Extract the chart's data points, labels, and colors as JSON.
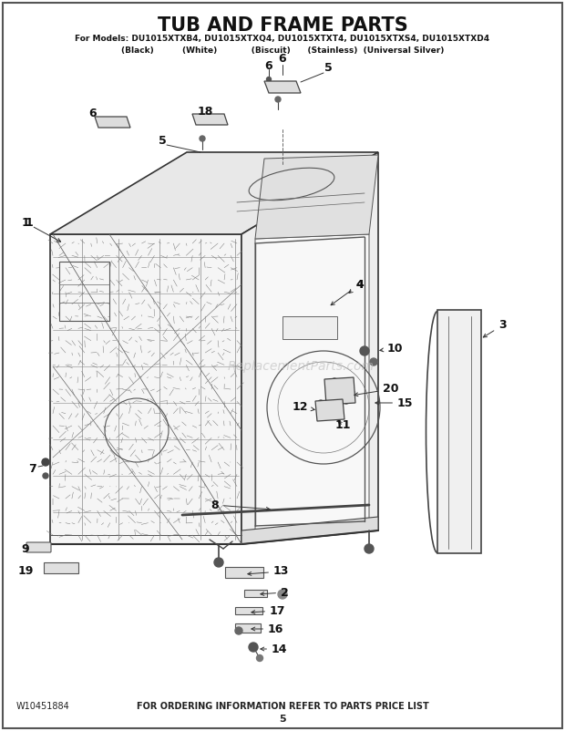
{
  "title": "TUB AND FRAME PARTS",
  "subtitle_line1": "For Models: DU1015XTXB4, DU1015XTXQ4, DU1015XTXT4, DU1015XTXS4, DU1015XTXD4",
  "subtitle_line2": "(Black)          (White)            (Biscuit)      (Stainless)  (Universal Silver)",
  "footer_left": "W10451884",
  "footer_center": "FOR ORDERING INFORMATION REFER TO PARTS PRICE LIST",
  "footer_page": "5",
  "watermark": "ReplacementParts.com",
  "bg_color": "#ffffff"
}
